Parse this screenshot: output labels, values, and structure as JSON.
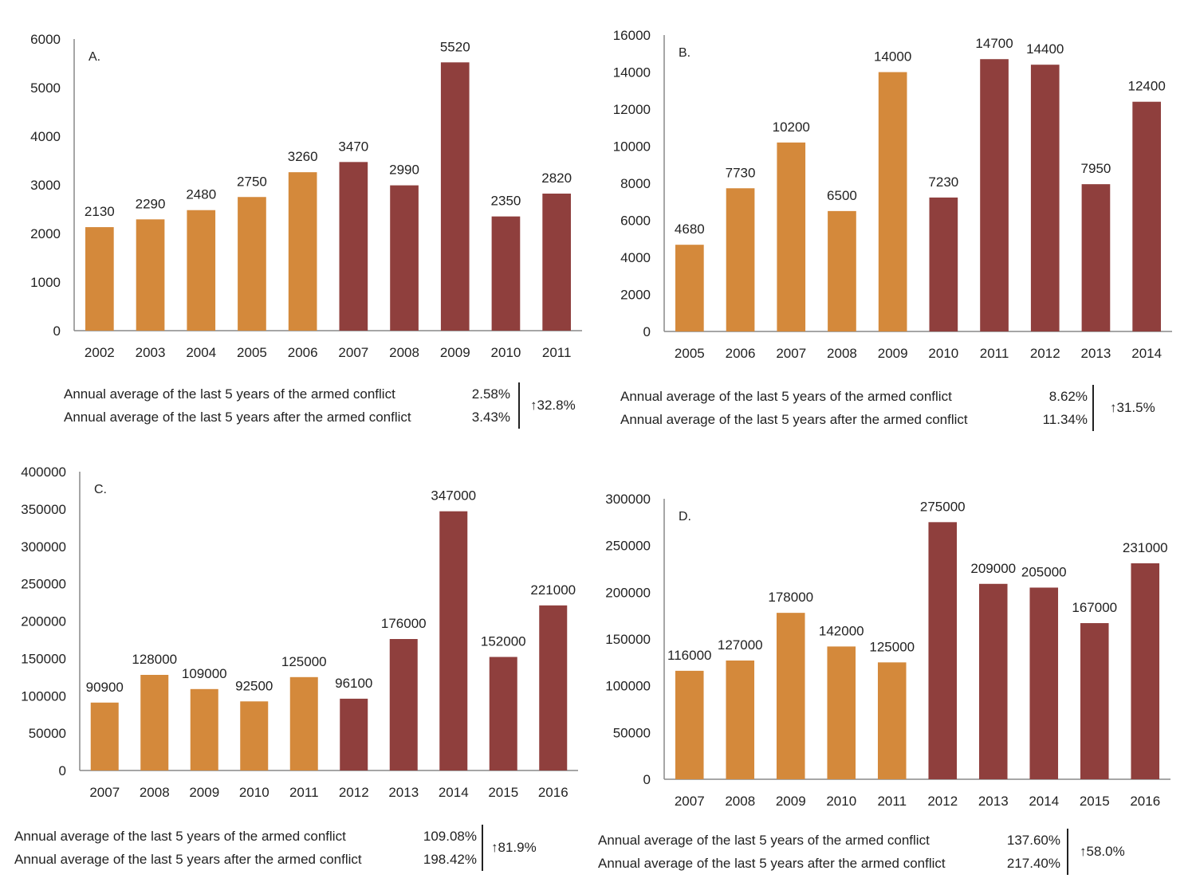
{
  "colors": {
    "before": "#D4893B",
    "after": "#8F3F3D",
    "axis": "#888888",
    "text": "#222222"
  },
  "chart_data": [
    {
      "panel_label": "A.",
      "type": "bar",
      "categories": [
        "2002",
        "2003",
        "2004",
        "2005",
        "2006",
        "2007",
        "2008",
        "2009",
        "2010",
        "2011"
      ],
      "values": [
        2130,
        2290,
        2480,
        2750,
        3260,
        3470,
        2990,
        5520,
        2350,
        2820
      ],
      "data_labels": [
        "2130",
        "2290",
        "2480",
        "2750",
        "3260",
        "3470",
        "2990",
        "5520",
        "2350",
        "2820"
      ],
      "groups": [
        "before",
        "before",
        "before",
        "before",
        "before",
        "after",
        "after",
        "after",
        "after",
        "after"
      ],
      "yticks": [
        "0",
        "1000",
        "2000",
        "3000",
        "4000",
        "5000",
        "6000"
      ],
      "ylim": [
        0,
        6000
      ],
      "stats": {
        "row1_label": "Annual average of the last 5 years of the armed conflict",
        "row1_value": "2.58%",
        "row2_label": "Annual average of the last 5 years after the armed conflict",
        "row2_value": "3.43%",
        "change": "↑32.8%"
      }
    },
    {
      "panel_label": "B.",
      "type": "bar",
      "categories": [
        "2005",
        "2006",
        "2007",
        "2008",
        "2009",
        "2010",
        "2011",
        "2012",
        "2013",
        "2014"
      ],
      "values": [
        4680,
        7730,
        10200,
        6500,
        14000,
        7230,
        14700,
        14400,
        7950,
        12400
      ],
      "data_labels": [
        "4680",
        "7730",
        "10200",
        "6500",
        "14000",
        "7230",
        "14700",
        "14400",
        "7950",
        "12400"
      ],
      "groups": [
        "before",
        "before",
        "before",
        "before",
        "before",
        "after",
        "after",
        "after",
        "after",
        "after"
      ],
      "yticks": [
        "0",
        "2000",
        "4000",
        "6000",
        "8000",
        "10000",
        "12000",
        "14000",
        "16000"
      ],
      "ylim": [
        0,
        16000
      ],
      "stats": {
        "row1_label": "Annual average of the last 5 years of the armed conflict",
        "row1_value": "8.62%",
        "row2_label": "Annual average of the last 5 years after the armed conflict",
        "row2_value": "11.34%",
        "change": "↑31.5%"
      }
    },
    {
      "panel_label": "C.",
      "type": "bar",
      "categories": [
        "2007",
        "2008",
        "2009",
        "2010",
        "2011",
        "2012",
        "2013",
        "2014",
        "2015",
        "2016"
      ],
      "values": [
        90900,
        128000,
        109000,
        92500,
        125000,
        96100,
        176000,
        347000,
        152000,
        221000
      ],
      "data_labels": [
        "90900",
        "128000",
        "109000",
        "92500",
        "125000",
        "96100",
        "176000",
        "347000",
        "152000",
        "221000"
      ],
      "groups": [
        "before",
        "before",
        "before",
        "before",
        "before",
        "after",
        "after",
        "after",
        "after",
        "after"
      ],
      "yticks": [
        "0",
        "50000",
        "100000",
        "150000",
        "200000",
        "250000",
        "300000",
        "350000",
        "400000"
      ],
      "ylim": [
        0,
        400000
      ],
      "stats": {
        "row1_label": "Annual average of the last 5 years of the armed conflict",
        "row1_value": "109.08%",
        "row2_label": "Annual average of the last 5 years after the armed conflict",
        "row2_value": "198.42%",
        "change": "↑81.9%"
      }
    },
    {
      "panel_label": "D.",
      "type": "bar",
      "categories": [
        "2007",
        "2008",
        "2009",
        "2010",
        "2011",
        "2012",
        "2013",
        "2014",
        "2015",
        "2016"
      ],
      "values": [
        116000,
        127000,
        178000,
        142000,
        125000,
        275000,
        209000,
        205000,
        167000,
        231000
      ],
      "data_labels": [
        "116000",
        "127000",
        "178000",
        "142000",
        "125000",
        "275000",
        "209000",
        "205000",
        "167000",
        "231000"
      ],
      "groups": [
        "before",
        "before",
        "before",
        "before",
        "before",
        "after",
        "after",
        "after",
        "after",
        "after"
      ],
      "yticks": [
        "0",
        "50000",
        "100000",
        "150000",
        "200000",
        "250000",
        "300000"
      ],
      "ylim": [
        0,
        300000
      ],
      "stats": {
        "row1_label": "Annual average of the last 5 years of the armed conflict",
        "row1_value": "137.60%",
        "row2_label": "Annual average of the last 5 years after the armed conflict",
        "row2_value": "217.40%",
        "change": "↑58.0%"
      }
    }
  ]
}
